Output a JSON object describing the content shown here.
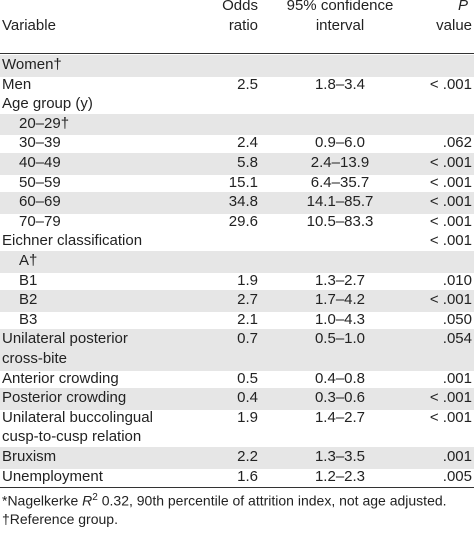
{
  "header": {
    "variable": "Variable",
    "odds_ratio": [
      "Odds",
      "ratio"
    ],
    "ci": [
      "95% confidence",
      "interval"
    ],
    "p_symbol": "P",
    "p_label": "value"
  },
  "rows": [
    {
      "variable": "Women†",
      "shaded": true
    },
    {
      "variable": "Men",
      "odds_ratio": 2.5,
      "ci": "1.8–3.4",
      "p": "< .001"
    },
    {
      "variable": "Age group (y)"
    },
    {
      "variable": "20–29†",
      "indent": 1,
      "shaded": true
    },
    {
      "variable": "30–39",
      "indent": 1,
      "odds_ratio": 2.4,
      "ci": "0.9–6.0",
      "p": ".062"
    },
    {
      "variable": "40–49",
      "indent": 1,
      "odds_ratio": 5.8,
      "ci": "2.4–13.9",
      "p": "< .001",
      "shaded": true
    },
    {
      "variable": "50–59",
      "indent": 1,
      "odds_ratio": 15.1,
      "ci": "6.4–35.7",
      "p": "< .001"
    },
    {
      "variable": "60–69",
      "indent": 1,
      "odds_ratio": 34.8,
      "ci": "14.1–85.7",
      "p": "< .001",
      "shaded": true
    },
    {
      "variable": "70–79",
      "indent": 1,
      "odds_ratio": 29.6,
      "ci": "10.5–83.3",
      "p": "< .001"
    },
    {
      "variable": "Eichner classification",
      "p": "< .001"
    },
    {
      "variable": "A†",
      "indent": 1,
      "shaded": true
    },
    {
      "variable": "B1",
      "indent": 1,
      "odds_ratio": 1.9,
      "ci": "1.3–2.7",
      "p": ".010"
    },
    {
      "variable": "B2",
      "indent": 1,
      "odds_ratio": 2.7,
      "ci": "1.7–4.2",
      "p": "< .001",
      "shaded": true
    },
    {
      "variable": "B3",
      "indent": 1,
      "odds_ratio": 2.1,
      "ci": "1.0–4.3",
      "p": ".050"
    },
    {
      "variable": [
        "Unilateral posterior",
        "cross-bite"
      ],
      "odds_ratio": 0.7,
      "ci": "0.5–1.0",
      "p": ".054",
      "shaded": true
    },
    {
      "variable": "Anterior crowding",
      "odds_ratio": 0.5,
      "ci": "0.4–0.8",
      "p": ".001"
    },
    {
      "variable": "Posterior crowding",
      "odds_ratio": 0.4,
      "ci": "0.3–0.6",
      "p": "< .001",
      "shaded": true
    },
    {
      "variable": [
        "Unilateral buccolingual",
        "cusp-to-cusp relation"
      ],
      "odds_ratio": 1.9,
      "ci": "1.4–2.7",
      "p": "< .001"
    },
    {
      "variable": "Bruxism",
      "odds_ratio": 2.2,
      "ci": "1.3–3.5",
      "p": ".001",
      "shaded": true
    },
    {
      "variable": "Unemployment",
      "odds_ratio": 1.6,
      "ci": "1.2–2.3",
      "p": ".005"
    }
  ],
  "footnotes": {
    "note1": {
      "prefix": "*Nagelkerke ",
      "symbol": "R",
      "sup": "2",
      "text": " 0.32, 90th percentile of attrition index, not age adjusted."
    },
    "note2": "†Reference group."
  }
}
